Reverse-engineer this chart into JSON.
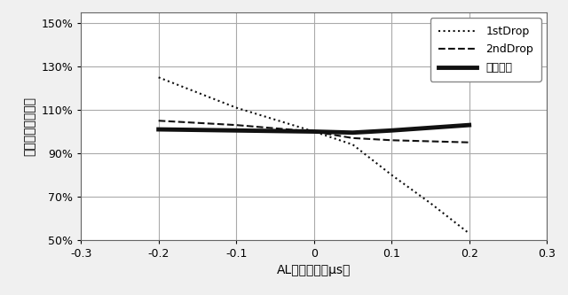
{
  "title": "",
  "xlabel": "ALのずれ量［μs］",
  "ylabel": "速度変化率［％］",
  "xlim": [
    -0.3,
    0.3
  ],
  "ylim": [
    50,
    155
  ],
  "yticks": [
    50,
    70,
    90,
    110,
    130,
    150
  ],
  "ytick_labels": [
    "50%",
    "70%",
    "90%",
    "110%",
    "130%",
    "150%"
  ],
  "xticks": [
    -0.3,
    -0.2,
    -0.1,
    0.0,
    0.1,
    0.2,
    0.3
  ],
  "xtick_labels": [
    "-0.3",
    "-0.2",
    "-0.1",
    "0",
    "0.1",
    "0.2",
    "0.3"
  ],
  "first_drop_x": [
    -0.2,
    -0.1,
    0.0,
    0.05,
    0.1,
    0.15,
    0.2
  ],
  "first_drop_y": [
    125,
    111,
    100,
    94,
    80,
    67,
    53
  ],
  "second_drop_x": [
    -0.2,
    -0.1,
    0.0,
    0.05,
    0.1,
    0.2
  ],
  "second_drop_y": [
    105,
    103,
    100,
    97,
    96,
    95
  ],
  "combined_x": [
    -0.2,
    -0.1,
    0.0,
    0.05,
    0.1,
    0.2
  ],
  "combined_y": [
    101,
    100.5,
    100,
    99.5,
    100.5,
    103
  ],
  "legend_labels": [
    "1stDrop",
    "2ndDrop",
    "合一液滴"
  ],
  "fig_facecolor": "#f0f0f0",
  "ax_facecolor": "#ffffff",
  "grid_color": "#aaaaaa",
  "line_color": "#111111"
}
